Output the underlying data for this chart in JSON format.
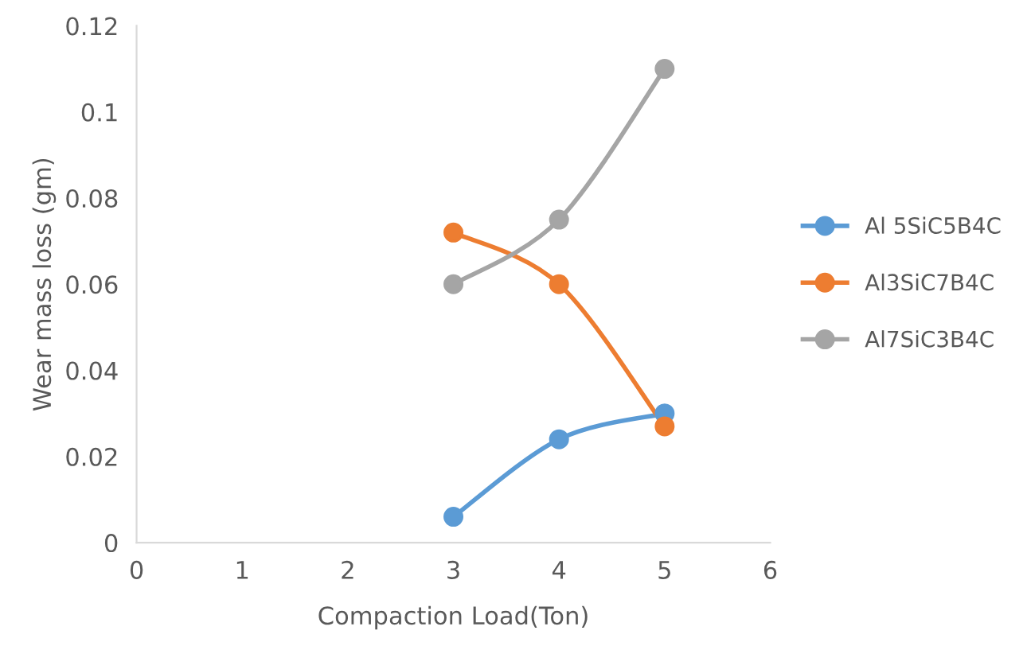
{
  "chart_data": {
    "type": "line",
    "xlabel": "Compaction Load(Ton)",
    "ylabel": "Wear mass loss (gm)",
    "x": [
      3,
      4,
      5
    ],
    "series": [
      {
        "name": "Al 5SiC5B4C",
        "color": "#5b9bd5",
        "values": [
          0.006,
          0.024,
          0.03
        ]
      },
      {
        "name": "Al3SiC7B4C",
        "color": "#ed7d31",
        "values": [
          0.072,
          0.06,
          0.027
        ]
      },
      {
        "name": "Al7SiC3B4C",
        "color": "#a5a5a5",
        "values": [
          0.06,
          0.075,
          0.11
        ]
      }
    ],
    "xlim": [
      0,
      6
    ],
    "xticks": [
      0,
      1,
      2,
      3,
      4,
      5,
      6
    ],
    "ylim": [
      0,
      0.12
    ],
    "yticks": [
      0,
      0.02,
      0.04,
      0.06,
      0.08,
      0.1,
      0.12
    ],
    "grid": false,
    "legend": "right",
    "marker": "circle",
    "line_style": "solid"
  }
}
